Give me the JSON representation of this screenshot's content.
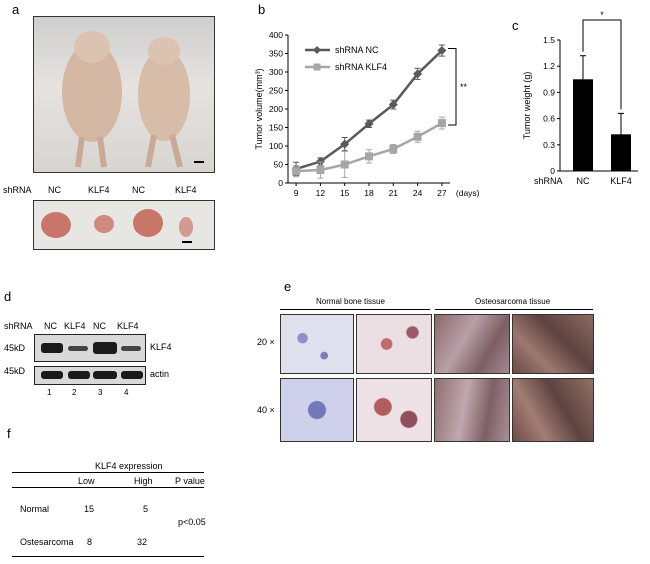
{
  "panels": {
    "a": {
      "label": "a",
      "shrna_label": "shRNA",
      "mouse_labels": [
        "NC",
        "KLF4",
        "NC",
        "KLF4"
      ]
    },
    "b": {
      "label": "b",
      "significance": "**"
    },
    "c": {
      "label": "c",
      "significance": "*",
      "shrna_label": "shRNA"
    },
    "d": {
      "label": "d",
      "shrna_label": "shRNA",
      "lanes": [
        "NC",
        "KLF4",
        "NC",
        "KLF4"
      ],
      "lane_numbers": [
        "1",
        "2",
        "3",
        "4"
      ],
      "markers": [
        "45kD",
        "45kD"
      ],
      "bands": [
        "KLF4",
        "actin"
      ]
    },
    "e": {
      "label": "e",
      "group_normal": "Normal bone tissue",
      "group_osteo": "Osteosarcoma tissue",
      "mag_20": "20 ×",
      "mag_40": "40 ×"
    },
    "f": {
      "label": "f",
      "header": "KLF4 expression",
      "columns": [
        "Low",
        "High",
        "P value"
      ],
      "rows": [
        {
          "name": "Normal",
          "low": "15",
          "high": "5"
        },
        {
          "name": "Ostesarcoma",
          "low": "8",
          "high": "32"
        }
      ],
      "pvalue": "p<0.05"
    }
  },
  "chart_data": [
    {
      "type": "line",
      "xlabel": "(days)",
      "ylabel": "Tumor volume(mm³)",
      "x": [
        9,
        12,
        15,
        18,
        21,
        24,
        27
      ],
      "ylim": [
        0,
        400
      ],
      "yticks": [
        0,
        50,
        100,
        150,
        200,
        250,
        300,
        350,
        400
      ],
      "legend_position": "top-left",
      "series": [
        {
          "name": "shRNA NC",
          "color": "#595959",
          "marker": "diamond",
          "values": [
            38,
            58,
            105,
            160,
            212,
            295,
            358
          ],
          "errors": [
            18,
            10,
            18,
            10,
            12,
            15,
            15
          ]
        },
        {
          "name": "shRNA KLF4",
          "color": "#a6a6a6",
          "marker": "square",
          "values": [
            32,
            35,
            50,
            72,
            92,
            125,
            162
          ],
          "errors": [
            15,
            22,
            35,
            18,
            12,
            15,
            16
          ]
        }
      ]
    },
    {
      "type": "bar",
      "ylabel": "Tumor weight (g)",
      "categories": [
        "NC",
        "KLF4"
      ],
      "values": [
        1.05,
        0.42
      ],
      "errors": [
        0.27,
        0.24
      ],
      "ylim": [
        0,
        1.5
      ],
      "yticks": [
        "0",
        "0.3",
        "0.6",
        "0.9",
        "1.2",
        "1.5"
      ],
      "color": "#000000"
    }
  ]
}
